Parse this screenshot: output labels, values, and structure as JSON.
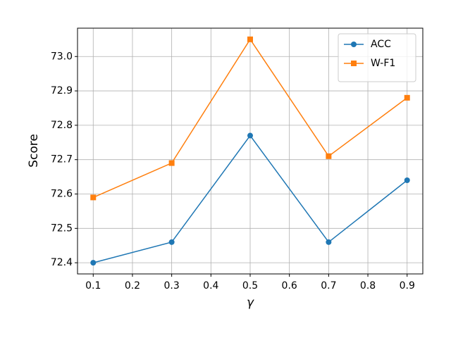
{
  "chart_data": {
    "type": "line",
    "x_label": "γ",
    "y_label": "Score",
    "x": [
      0.1,
      0.3,
      0.5,
      0.7,
      0.9
    ],
    "series": [
      {
        "name": "ACC",
        "color": "#1f77b4",
        "marker": "circle",
        "values": [
          72.4,
          72.46,
          72.77,
          72.46,
          72.64
        ]
      },
      {
        "name": "W-F1",
        "color": "#ff7f0e",
        "marker": "square",
        "values": [
          72.59,
          72.69,
          73.05,
          72.71,
          72.88
        ]
      }
    ],
    "xlim": [
      0.06,
      0.94
    ],
    "xticks": [
      0.1,
      0.2,
      0.3,
      0.4,
      0.5,
      0.6,
      0.7,
      0.8,
      0.9
    ],
    "ylim": [
      72.3675,
      73.0825
    ],
    "yticks": [
      72.4,
      72.5,
      72.6,
      72.7,
      72.8,
      72.9,
      {
        "value": 73.0,
        "label": "73.0"
      }
    ],
    "grid": true,
    "legend": "upper right"
  }
}
